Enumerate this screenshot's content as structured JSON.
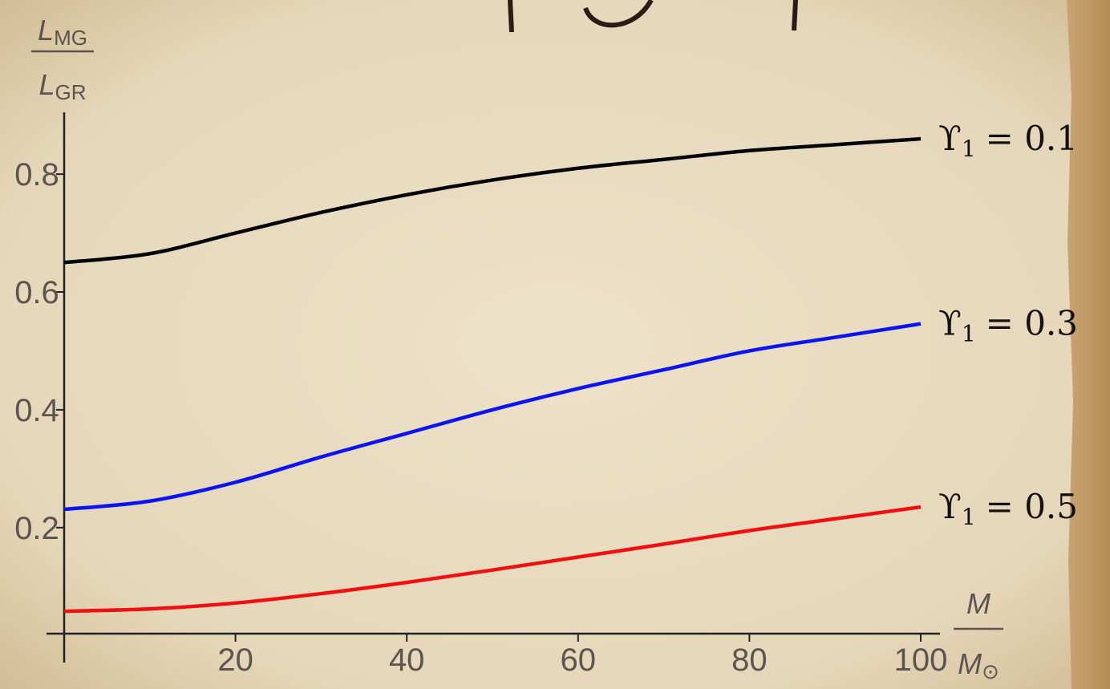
{
  "chart_data": {
    "type": "line",
    "ylabel": {
      "numerator": {
        "text": "L",
        "sub": "MG"
      },
      "denominator": {
        "text": "L",
        "sub": "GR"
      }
    },
    "xlabel": {
      "numerator": {
        "text": "M"
      },
      "denominator": {
        "text": "M",
        "sub": "⊙"
      }
    },
    "x": [
      0,
      10,
      20,
      30,
      40,
      50,
      60,
      70,
      80,
      90,
      100
    ],
    "series": [
      {
        "color": "#000000",
        "values": [
          0.65,
          0.665,
          0.7,
          0.735,
          0.765,
          0.79,
          0.81,
          0.825,
          0.84,
          0.85,
          0.86
        ],
        "annotation": {
          "symbol": "ϒ",
          "sub": "1",
          "text": "= 0.1"
        }
      },
      {
        "color": "#0a14f0",
        "values": [
          0.231,
          0.245,
          0.277,
          0.32,
          0.36,
          0.4,
          0.436,
          0.468,
          0.5,
          0.523,
          0.546
        ],
        "annotation": {
          "symbol": "ϒ",
          "sub": "1",
          "text": "= 0.3"
        }
      },
      {
        "color": "#f01010",
        "values": [
          0.058,
          0.062,
          0.072,
          0.088,
          0.107,
          0.128,
          0.15,
          0.172,
          0.195,
          0.215,
          0.235
        ],
        "annotation": {
          "symbol": "ϒ",
          "sub": "1",
          "text": "= 0.5"
        }
      }
    ],
    "xlim": [
      0,
      100
    ],
    "xticks": [
      20,
      40,
      60,
      80,
      100
    ],
    "ylim": [
      0.02,
      0.905
    ],
    "yticks": [
      0.2,
      0.4,
      0.6,
      0.8
    ]
  }
}
